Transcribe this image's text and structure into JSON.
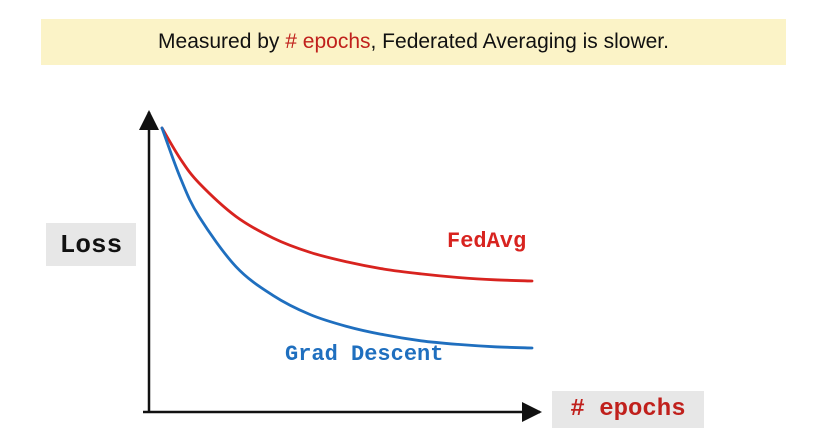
{
  "banner": {
    "prefix": "Measured by ",
    "highlight": "# epochs",
    "suffix": ", Federated Averaging is slower."
  },
  "colors": {
    "fedavg": "#d8231f",
    "grad_descent": "#1f6fbf",
    "highlight": "#c0201c",
    "banner_bg": "#fbf3c7"
  },
  "chart_data": {
    "type": "line",
    "xlabel": "# epochs",
    "ylabel": "Loss",
    "title": "",
    "grid": false,
    "series": [
      {
        "name": "FedAvg",
        "x": [
          0,
          0.05,
          0.1,
          0.2,
          0.3,
          0.4,
          0.5,
          0.6,
          0.7,
          0.8,
          0.9,
          1.0
        ],
        "values": [
          1.0,
          0.87,
          0.77,
          0.63,
          0.54,
          0.48,
          0.44,
          0.41,
          0.39,
          0.375,
          0.365,
          0.36
        ]
      },
      {
        "name": "Grad Descent",
        "x": [
          0,
          0.05,
          0.1,
          0.2,
          0.3,
          0.4,
          0.5,
          0.6,
          0.7,
          0.8,
          0.9,
          1.0
        ],
        "values": [
          1.0,
          0.79,
          0.63,
          0.42,
          0.3,
          0.22,
          0.17,
          0.135,
          0.11,
          0.095,
          0.085,
          0.08
        ]
      }
    ]
  }
}
